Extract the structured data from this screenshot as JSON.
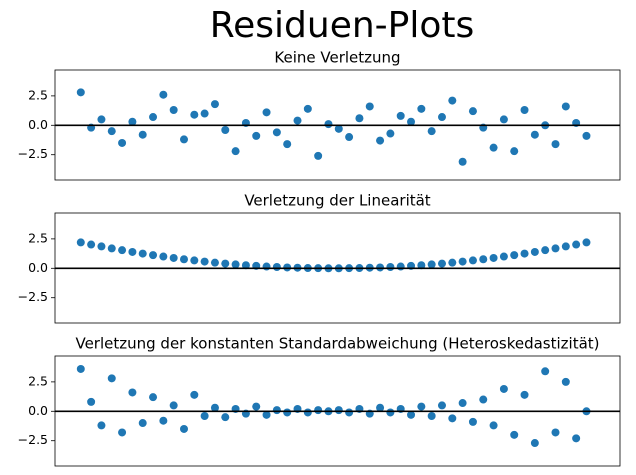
{
  "title": "Residuen-Plots",
  "chart_data": [
    {
      "type": "scatter",
      "title": "Keine Verletzung",
      "color": "#1f77b4",
      "hline": 0,
      "xlim": [
        -10,
        209
      ],
      "ylim": [
        -4.65,
        4.7
      ],
      "yticks": [
        {
          "value": -2.5,
          "label": "−2.5"
        },
        {
          "value": 0,
          "label": "0.0"
        },
        2.5
      ],
      "x": [
        0,
        4,
        8,
        12,
        16,
        20,
        24,
        28,
        32,
        36,
        40,
        44,
        48,
        52,
        56,
        60,
        64,
        68,
        72,
        76,
        80,
        84,
        88,
        92,
        96,
        100,
        104,
        108,
        112,
        116,
        120,
        124,
        128,
        132,
        136,
        140,
        144,
        148,
        152,
        156,
        160,
        164,
        168,
        172,
        176,
        180,
        184,
        188,
        192,
        196
      ],
      "values": [
        2.8,
        -0.2,
        0.5,
        -0.5,
        -1.5,
        0.3,
        -0.8,
        0.7,
        2.6,
        1.3,
        -1.2,
        0.9,
        1.0,
        1.8,
        -0.4,
        -2.2,
        0.2,
        -0.9,
        1.1,
        -0.6,
        -1.6,
        0.4,
        1.4,
        -2.6,
        0.1,
        -0.3,
        -1.0,
        0.6,
        1.6,
        -1.3,
        -0.7,
        0.8,
        0.3,
        1.4,
        -0.5,
        0.7,
        2.1,
        -3.1,
        1.2,
        -0.2,
        -1.9,
        0.5,
        -2.2,
        1.3,
        -0.8,
        0.0,
        -1.6,
        1.6,
        0.2,
        -0.9
      ]
    },
    {
      "type": "scatter",
      "title": "Verletzung der Linearität",
      "color": "#1f77b4",
      "hline": 0,
      "xlim": [
        -10,
        209
      ],
      "ylim": [
        -4.65,
        4.7
      ],
      "yticks": [
        {
          "value": -2.5,
          "label": "−2.5"
        },
        {
          "value": 0,
          "label": "0.0"
        },
        2.5
      ],
      "x": [
        0,
        4,
        8,
        12,
        16,
        20,
        24,
        28,
        32,
        36,
        40,
        44,
        48,
        52,
        56,
        60,
        64,
        68,
        72,
        76,
        80,
        84,
        88,
        92,
        96,
        100,
        104,
        108,
        112,
        116,
        120,
        124,
        128,
        132,
        136,
        140,
        144,
        148,
        152,
        156,
        160,
        164,
        168,
        172,
        176,
        180,
        184,
        188,
        192,
        196
      ],
      "values": [
        2.2,
        2.02,
        1.86,
        1.69,
        1.54,
        1.39,
        1.25,
        1.12,
        1.0,
        0.88,
        0.77,
        0.67,
        0.57,
        0.48,
        0.4,
        0.33,
        0.26,
        0.21,
        0.15,
        0.11,
        0.07,
        0.05,
        0.02,
        0.01,
        0.0,
        0.0,
        0.01,
        0.02,
        0.05,
        0.07,
        0.11,
        0.15,
        0.21,
        0.26,
        0.33,
        0.4,
        0.48,
        0.57,
        0.67,
        0.77,
        0.88,
        1.0,
        1.12,
        1.25,
        1.39,
        1.54,
        1.69,
        1.86,
        2.02,
        2.2
      ]
    },
    {
      "type": "scatter",
      "title": "Verletzung der konstanten Standardabweichung (Heteroskedastizität)",
      "color": "#1f77b4",
      "hline": 0,
      "xlim": [
        -10,
        209
      ],
      "ylim": [
        -4.65,
        4.7
      ],
      "yticks": [
        {
          "value": -2.5,
          "label": "−2.5"
        },
        {
          "value": 0,
          "label": "0.0"
        },
        2.5
      ],
      "x": [
        0,
        4,
        8,
        12,
        16,
        20,
        24,
        28,
        32,
        36,
        40,
        44,
        48,
        52,
        56,
        60,
        64,
        68,
        72,
        76,
        80,
        84,
        88,
        92,
        96,
        100,
        104,
        108,
        112,
        116,
        120,
        124,
        128,
        132,
        136,
        140,
        144,
        148,
        152,
        156,
        160,
        164,
        168,
        172,
        176,
        180,
        184,
        188,
        192,
        196
      ],
      "values": [
        3.6,
        0.8,
        -1.2,
        2.8,
        -1.8,
        1.6,
        -1.0,
        1.2,
        -0.8,
        0.5,
        -1.5,
        1.4,
        -0.4,
        0.3,
        -0.5,
        0.2,
        -0.2,
        0.4,
        -0.3,
        0.1,
        -0.1,
        0.2,
        -0.1,
        0.1,
        0.0,
        0.1,
        -0.1,
        0.2,
        -0.2,
        0.3,
        -0.1,
        0.2,
        -0.3,
        0.4,
        -0.4,
        0.5,
        -0.6,
        0.7,
        -0.9,
        1.0,
        -1.2,
        1.9,
        -2.0,
        1.4,
        -2.7,
        3.4,
        -1.8,
        2.5,
        -2.3,
        0.0
      ]
    }
  ]
}
